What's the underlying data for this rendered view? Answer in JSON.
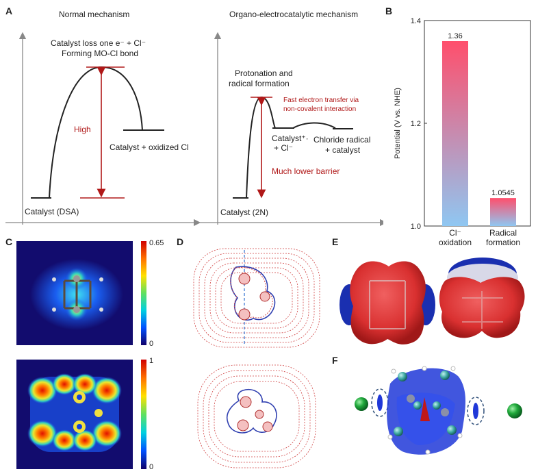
{
  "panel_a": {
    "letter": "A",
    "left": {
      "title": "Normal mechanism",
      "ts_label_line1": "Catalyst loss one e⁻ + Cl⁻",
      "ts_label_line2": "Forming MO-Cl bond",
      "barrier_label": "High",
      "product_label": "Catalyst + oxidized Cl",
      "start_label": "Catalyst (DSA)"
    },
    "right": {
      "title": "Organo-electrocatalytic mechanism",
      "ts_label_line1": "Protonation and",
      "ts_label_line2": "radical formation",
      "note_line1": "Fast electron transfer via",
      "note_line2": "non-covalent interaction",
      "intermediate_line1": "Catalyst⁺·",
      "intermediate_line2": "+ Cl⁻",
      "product_line1": "Chloride radical",
      "product_line2": "+ catalyst",
      "barrier_label": "Much lower barrier",
      "start_label": "Catalyst (2N)"
    }
  },
  "panel_b": {
    "letter": "B",
    "colors": {
      "top": "#ff4f6c",
      "bottom": "#8fc7f2"
    }
  },
  "chart_data": {
    "type": "bar",
    "categories": [
      "Cl⁻ oxidation",
      "Radical formation"
    ],
    "category_lines": [
      [
        "Cl⁻",
        "oxidation"
      ],
      [
        "Radical",
        "formation"
      ]
    ],
    "values": [
      1.36,
      1.0545
    ],
    "value_labels": [
      "1.36",
      "1.0545"
    ],
    "ylabel": "Potential (V vs. NHE)",
    "ylim": [
      1.0,
      1.4
    ],
    "yticks": [
      "1.0",
      "1.2",
      "1.4"
    ]
  },
  "panel_c": {
    "letter": "C",
    "top_scale": {
      "max": "0.65",
      "min": "0"
    },
    "bottom_scale": {
      "max": "1",
      "min": "0"
    }
  },
  "panel_d": {
    "letter": "D"
  },
  "panel_e": {
    "letter": "E",
    "colors": {
      "negative": "#d93030",
      "positive": "#1a2fb0"
    }
  },
  "panel_f": {
    "letter": "F",
    "colors": {
      "chloride": "#1fa83a",
      "carbon": "#3aa6a0",
      "surface": "#2038d8"
    }
  }
}
